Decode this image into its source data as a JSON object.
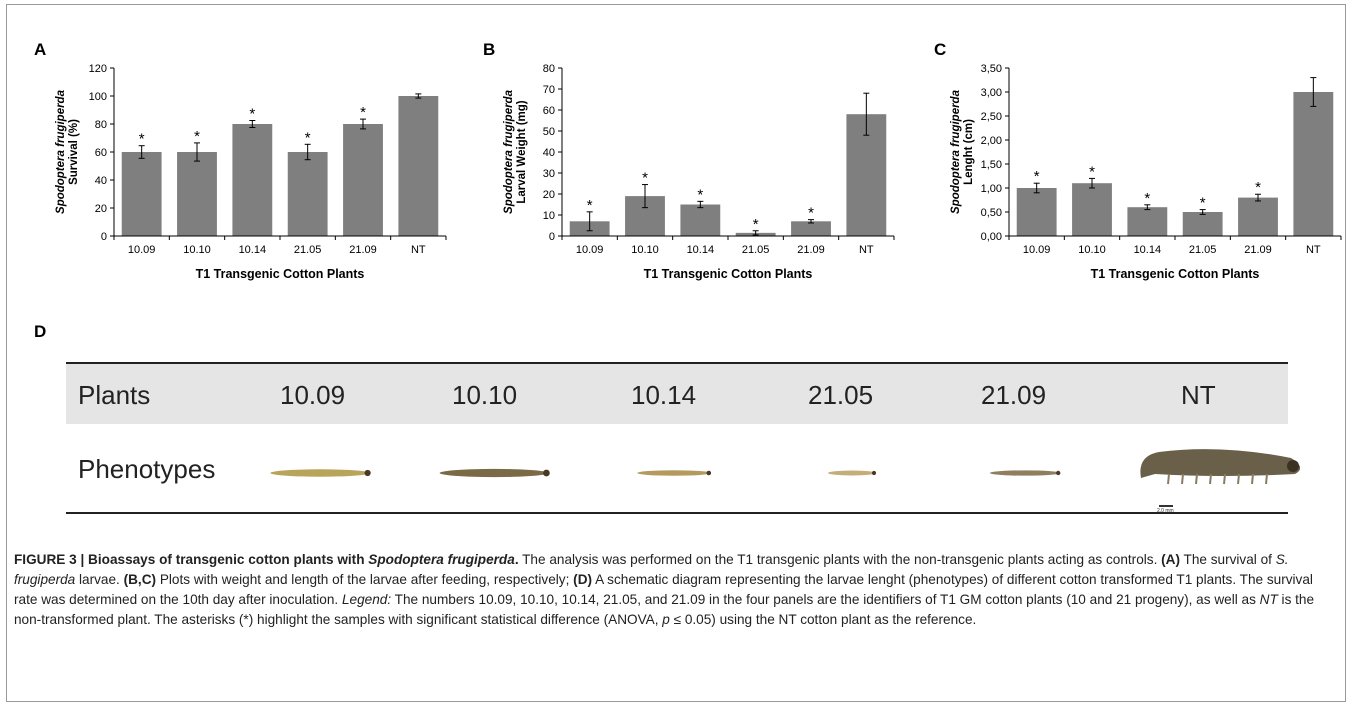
{
  "panels": {
    "a": "A",
    "b": "B",
    "c": "C",
    "d": "D"
  },
  "chart_data": [
    {
      "type": "bar",
      "categories": [
        "10.09",
        "10.10",
        "10.14",
        "21.05",
        "21.09",
        "NT"
      ],
      "values": [
        60,
        60,
        80,
        60,
        80,
        100
      ],
      "errors": [
        4.5,
        6.5,
        2.5,
        5.5,
        3.5,
        1.5
      ],
      "significant": [
        true,
        true,
        true,
        true,
        true,
        false
      ],
      "significance_mark": "*",
      "xlabel": "T1 Transgenic Cotton Plants",
      "ylabel_species": "Spodoptera frugiperda",
      "ylabel": "Survival (%)",
      "ylim": [
        0,
        120
      ],
      "yticks": [
        "0",
        "20",
        "40",
        "60",
        "80",
        "100",
        "120"
      ],
      "bar_color": "#7f7f7f"
    },
    {
      "type": "bar",
      "categories": [
        "10.09",
        "10.10",
        "10.14",
        "21.05",
        "21.09",
        "NT"
      ],
      "values": [
        7,
        19,
        15,
        1.5,
        7,
        58
      ],
      "errors": [
        4.5,
        5.5,
        1.5,
        1,
        0.8,
        10
      ],
      "significant": [
        true,
        true,
        true,
        true,
        true,
        false
      ],
      "significance_mark": "*",
      "xlabel": "T1 Transgenic Cotton Plants",
      "ylabel_species": "Spodoptera frugiperda",
      "ylabel": "Larval Weight (mg)",
      "ylim": [
        0,
        80
      ],
      "yticks": [
        "0",
        "10",
        "20",
        "30",
        "40",
        "50",
        "60",
        "70",
        "80"
      ],
      "bar_color": "#7f7f7f"
    },
    {
      "type": "bar",
      "categories": [
        "10.09",
        "10.10",
        "10.14",
        "21.05",
        "21.09",
        "NT"
      ],
      "values": [
        1.0,
        1.1,
        0.6,
        0.5,
        0.8,
        3.0
      ],
      "errors": [
        0.1,
        0.1,
        0.05,
        0.05,
        0.07,
        0.3
      ],
      "significant": [
        true,
        true,
        true,
        true,
        true,
        false
      ],
      "significance_mark": "*",
      "xlabel": "T1 Transgenic Cotton Plants",
      "ylabel_species": "Spodoptera frugiperda",
      "ylabel": "Lenght (cm)",
      "ylim": [
        0,
        3.5
      ],
      "yticks": [
        "0,00",
        "0,50",
        "1,00",
        "1,50",
        "2,00",
        "2,50",
        "3,00",
        "3,50"
      ],
      "bar_color": "#7f7f7f"
    }
  ],
  "table": {
    "headers": [
      "Plants",
      "10.09",
      "10.10",
      "10.14",
      "21.05",
      "21.09",
      "NT"
    ],
    "row_label": "Phenotypes",
    "larva_scale": [
      0.62,
      0.68,
      0.46,
      0.3,
      0.44,
      1.0
    ],
    "scale_bar": "2.0 mm"
  },
  "caption": {
    "lead": "FIGURE 3 | Bioassays of transgenic cotton plants with ",
    "lead_species": "Spodoptera frugiperda",
    "lead_end": ".",
    "t1": " The analysis was performed on the T1 transgenic plants with the non-transgenic plants acting as controls. ",
    "a_tag": "(A)",
    "t2": " The survival of ",
    "species_short": "S. frugiperda",
    "t3": " larvae. ",
    "bc_tag": "(B,C)",
    "t4": " Plots with weight and length of the larvae after feeding, respectively; ",
    "d_tag": "(D)",
    "t5": " A schematic diagram representing the larvae lenght (phenotypes) of different cotton transformed T1 plants. The survival rate was determined on the 10th day after inoculation. ",
    "legend_word": "Legend:",
    "t6": " The numbers 10.09, 10.10, 10.14, 21.05, and 21.09 in the four panels are the identifiers of T1 GM cotton plants (10 and 21 progeny), as well as ",
    "nt": "NT",
    "t7": " is the non-transformed plant. The asterisks (*) highlight the samples with significant statistical difference (ANOVA, ",
    "p": "p",
    "t8": " ≤ 0.05) using the NT cotton plant as the reference."
  }
}
